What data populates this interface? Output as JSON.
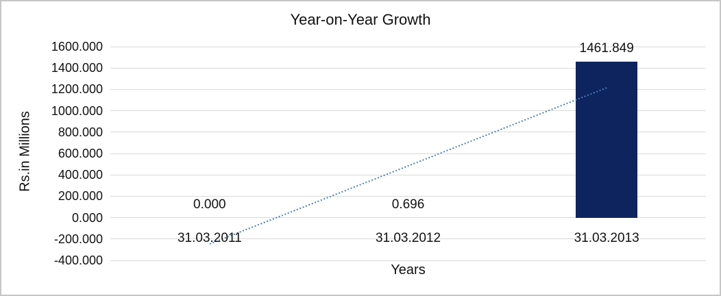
{
  "window": {
    "background": "#ffffff",
    "border_color": "#c6c6c6"
  },
  "chart_data": {
    "type": "bar",
    "title": "Year-on-Year Growth",
    "xlabel": "Years",
    "ylabel": "Rs.in Millions",
    "categories": [
      "31.03.2011",
      "31.03.2012",
      "31.03.2013"
    ],
    "values": [
      0.0,
      0.696,
      1461.849
    ],
    "data_labels": [
      "0.000",
      "0.696",
      "1461.849"
    ],
    "ylim": [
      -400,
      1600
    ],
    "ytick_step": 200,
    "ytick_labels": [
      "1600.000",
      "1400.000",
      "1200.000",
      "1000.000",
      "800.000",
      "600.000",
      "400.000",
      "200.000",
      "0.000",
      "-200.000",
      "-400.000"
    ],
    "grid": true,
    "legend_position": "none",
    "bar_color": "#0d245f",
    "gridline_color": "#d9d9d9",
    "text_color": "#111111",
    "trendline": {
      "style": "dotted",
      "color": "#4a7ebb",
      "start": {
        "category_index": 0,
        "value": -243
      },
      "end": {
        "category_index": 2,
        "value": 1218
      }
    }
  }
}
